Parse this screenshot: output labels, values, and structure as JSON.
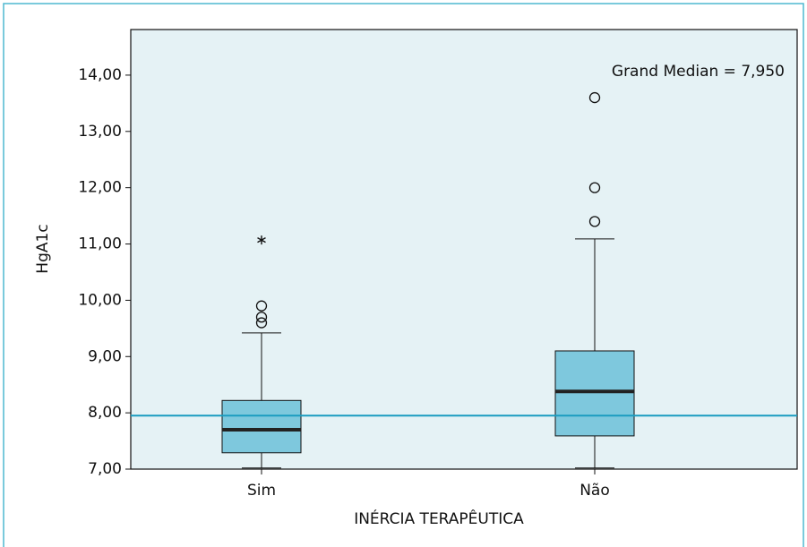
{
  "chart_data": {
    "type": "boxplot",
    "x_label": "INÉRCIA TERAPÊUTICA",
    "y_label": "HgA1c",
    "annotation": "Grand Median = 7,950",
    "grand_median": 7.95,
    "grand_median_color": "#1a9cc0",
    "categories": [
      "Sim",
      "Não"
    ],
    "boxes": [
      {
        "min": 7.02,
        "q1": 7.29,
        "median": 7.7,
        "q3": 8.22,
        "max": 9.42,
        "outliers": [
          9.9,
          9.7,
          9.6
        ],
        "extremes": [
          11.07
        ]
      },
      {
        "min": 7.02,
        "q1": 7.59,
        "median": 8.38,
        "q3": 9.1,
        "max": 11.09,
        "outliers": [
          13.6,
          12.0,
          11.4
        ],
        "extremes": []
      }
    ],
    "color": "#7ec8dd",
    "ylim": [
      7,
      14.81
    ],
    "yticks": [
      {
        "value": 7,
        "label": "7,00"
      },
      {
        "value": 8,
        "label": "8,00"
      },
      {
        "value": 9,
        "label": "9,00"
      },
      {
        "value": 10,
        "label": "10,00"
      },
      {
        "value": 11,
        "label": "11,00"
      },
      {
        "value": 12,
        "label": "12,00"
      },
      {
        "value": 13,
        "label": "13,00"
      },
      {
        "value": 14,
        "label": "14,00"
      }
    ]
  }
}
